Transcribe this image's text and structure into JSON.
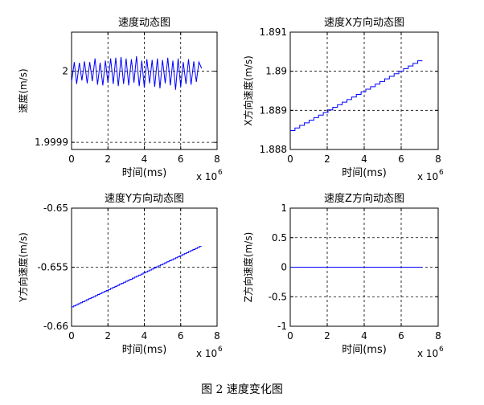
{
  "caption": "图 2 速度变化图",
  "chart_data": [
    {
      "type": "line",
      "title": "速度动态图",
      "xlabel": "时间(ms)",
      "ylabel": "速度(m/s)",
      "x_multiplier": "x 10",
      "x_multiplier_exp": "6",
      "xlim": [
        0,
        8
      ],
      "ylim": [
        1.99989,
        2.000055
      ],
      "xticks": [
        0,
        2,
        4,
        6,
        8
      ],
      "xtick_labels": [
        "0",
        "2",
        "4",
        "6",
        "8"
      ],
      "yticks": [
        1.9999,
        2.0
      ],
      "ytick_labels": [
        "1.9999",
        "2"
      ],
      "grid": true,
      "series": [
        {
          "color": "#0000ff",
          "x": [
            0.0,
            0.15,
            0.28,
            0.43,
            0.57,
            0.71,
            0.86,
            1.0,
            1.14,
            1.29,
            1.43,
            1.57,
            1.72,
            1.86,
            2.0,
            2.15,
            2.29,
            2.43,
            2.57,
            2.72,
            2.86,
            3.0,
            3.14,
            3.29,
            3.43,
            3.57,
            3.72,
            3.86,
            4.0,
            4.14,
            4.29,
            4.43,
            4.57,
            4.72,
            4.86,
            5.0,
            5.15,
            5.29,
            5.43,
            5.57,
            5.72,
            5.86,
            6.0,
            6.14,
            6.29,
            6.43,
            6.57,
            6.72,
            6.86,
            7.0,
            7.15
          ],
          "y": [
            1.999985,
            2.000013,
            1.999982,
            2.000012,
            1.999987,
            2.000014,
            1.999983,
            2.000013,
            1.999986,
            2.000018,
            1.999981,
            2.000012,
            1.99998,
            2.000015,
            1.999984,
            2.000018,
            1.999982,
            2.000019,
            1.999979,
            2.00002,
            1.999982,
            2.000018,
            1.99998,
            2.000017,
            1.999984,
            2.000021,
            1.999979,
            2.000015,
            1.999977,
            2.000017,
            1.999983,
            2.000016,
            1.999978,
            2.000018,
            1.999976,
            2.000016,
            1.999983,
            2.000019,
            1.99998,
            2.000015,
            1.999974,
            2.000018,
            1.999978,
            2.000013,
            1.999982,
            2.000017,
            1.999981,
            2.000014,
            1.999985,
            2.000013,
            2.000004
          ]
        }
      ]
    },
    {
      "type": "line",
      "title": "速度X方向动态图",
      "xlabel": "时间(ms)",
      "ylabel": "X方向速度(m/s)",
      "x_multiplier": "x 10",
      "x_multiplier_exp": "6",
      "xlim": [
        0,
        8
      ],
      "ylim": [
        1.888,
        1.891
      ],
      "xticks": [
        0,
        2,
        4,
        6,
        8
      ],
      "xtick_labels": [
        "0",
        "2",
        "4",
        "6",
        "8"
      ],
      "yticks": [
        1.888,
        1.889,
        1.89,
        1.891
      ],
      "ytick_labels": [
        "1.888",
        "1.889",
        "1.89",
        "1.891"
      ],
      "grid": true,
      "series": [
        {
          "color": "#0000ff",
          "x": [
            0,
            7.15
          ],
          "y": [
            1.88845,
            1.8903
          ],
          "step_count": 28
        }
      ]
    },
    {
      "type": "line",
      "title": "速度Y方向动态图",
      "xlabel": "时间(ms)",
      "ylabel": "Y方向速度(m/s)",
      "x_multiplier": "x 10",
      "x_multiplier_exp": "6",
      "xlim": [
        0,
        8
      ],
      "ylim": [
        -0.66,
        -0.65
      ],
      "xticks": [
        0,
        2,
        4,
        6,
        8
      ],
      "xtick_labels": [
        "0",
        "2",
        "4",
        "6",
        "8"
      ],
      "yticks": [
        -0.66,
        -0.655,
        -0.65
      ],
      "ytick_labels": [
        "-0.66",
        "-0.655",
        "-0.65"
      ],
      "grid": true,
      "series": [
        {
          "color": "#0000ff",
          "x": [
            0,
            7.15
          ],
          "y": [
            -0.6584,
            -0.6532
          ],
          "step_count": 60
        }
      ]
    },
    {
      "type": "line",
      "title": "速度Z方向动态图",
      "xlabel": "时间(ms)",
      "ylabel": "Z方向速度(m/s)",
      "x_multiplier": "x 10",
      "x_multiplier_exp": "6",
      "xlim": [
        0,
        8
      ],
      "ylim": [
        -1,
        1
      ],
      "xticks": [
        0,
        2,
        4,
        6,
        8
      ],
      "xtick_labels": [
        "0",
        "2",
        "4",
        "6",
        "8"
      ],
      "yticks": [
        -1,
        -0.5,
        0,
        0.5,
        1
      ],
      "ytick_labels": [
        "-1",
        "-0.5",
        "0",
        "0.5",
        "1"
      ],
      "grid": true,
      "series": [
        {
          "color": "#0000ff",
          "x": [
            0,
            7.15
          ],
          "y": [
            0,
            0
          ]
        }
      ]
    }
  ]
}
